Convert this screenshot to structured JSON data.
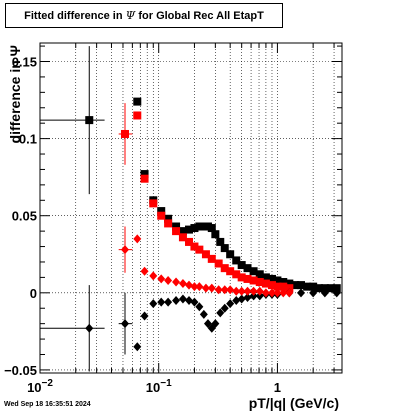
{
  "chart_data": {
    "type": "scatter",
    "title_prefix": "Fitted difference in",
    "title_symbol": "Ψ",
    "title_suffix": "for Global Rec All EtapT",
    "xlabel": "pT/|q| (GeV/c)",
    "ylabel": "difference in Ψ",
    "x_scale": "log",
    "xlim": [
      0.01,
      3.5
    ],
    "ylim": [
      -0.052,
      0.162
    ],
    "grid": true,
    "x_major_ticks": [
      {
        "v": 0.01,
        "base": "10",
        "exp": "−2"
      },
      {
        "v": 0.1,
        "base": "10",
        "exp": "−1"
      },
      {
        "v": 1,
        "base": "1",
        "exp": ""
      }
    ],
    "y_ticks": [
      {
        "v": -0.05,
        "label": "−0.05"
      },
      {
        "v": 0,
        "label": "0"
      },
      {
        "v": 0.05,
        "label": "0.05"
      },
      {
        "v": 0.1,
        "label": "0.1"
      },
      {
        "v": 0.15,
        "label": "0.15"
      }
    ],
    "series": [
      {
        "color": "#000000",
        "marker": "square",
        "points": [
          {
            "x": 0.026,
            "y": 0.112,
            "xerr": [
              0.01,
              0.035
            ],
            "yerr": 0.048
          },
          {
            "x": 0.066,
            "y": 0.124
          },
          {
            "x": 0.076,
            "y": 0.077
          },
          {
            "x": 0.09,
            "y": 0.06
          },
          {
            "x": 0.105,
            "y": 0.053
          },
          {
            "x": 0.12,
            "y": 0.048
          },
          {
            "x": 0.14,
            "y": 0.043
          },
          {
            "x": 0.16,
            "y": 0.04
          },
          {
            "x": 0.18,
            "y": 0.041
          },
          {
            "x": 0.2,
            "y": 0.042
          },
          {
            "x": 0.22,
            "y": 0.043
          },
          {
            "x": 0.24,
            "y": 0.043
          },
          {
            "x": 0.26,
            "y": 0.043
          },
          {
            "x": 0.28,
            "y": 0.042
          },
          {
            "x": 0.3,
            "y": 0.038
          },
          {
            "x": 0.33,
            "y": 0.033
          },
          {
            "x": 0.36,
            "y": 0.029
          },
          {
            "x": 0.4,
            "y": 0.025
          },
          {
            "x": 0.45,
            "y": 0.021
          },
          {
            "x": 0.5,
            "y": 0.018
          },
          {
            "x": 0.56,
            "y": 0.016
          },
          {
            "x": 0.63,
            "y": 0.014
          },
          {
            "x": 0.71,
            "y": 0.012
          },
          {
            "x": 0.8,
            "y": 0.01
          },
          {
            "x": 0.9,
            "y": 0.009
          },
          {
            "x": 1.0,
            "y": 0.008
          },
          {
            "x": 1.12,
            "y": 0.007
          },
          {
            "x": 1.26,
            "y": 0.006
          },
          {
            "x": 1.41,
            "y": 0.005
          },
          {
            "x": 1.58,
            "y": 0.005
          },
          {
            "x": 1.78,
            "y": 0.004
          },
          {
            "x": 2.0,
            "y": 0.004
          },
          {
            "x": 2.24,
            "y": 0.003
          },
          {
            "x": 2.51,
            "y": 0.003
          },
          {
            "x": 2.82,
            "y": 0.003
          },
          {
            "x": 3.16,
            "y": 0.003
          }
        ]
      },
      {
        "color": "#ff0000",
        "marker": "square",
        "points": [
          {
            "x": 0.052,
            "y": 0.103,
            "xerr": [
              0.046,
              0.06
            ],
            "yerr": 0.02
          },
          {
            "x": 0.066,
            "y": 0.115
          },
          {
            "x": 0.076,
            "y": 0.074
          },
          {
            "x": 0.09,
            "y": 0.058
          },
          {
            "x": 0.105,
            "y": 0.05
          },
          {
            "x": 0.12,
            "y": 0.045
          },
          {
            "x": 0.14,
            "y": 0.04
          },
          {
            "x": 0.16,
            "y": 0.036
          },
          {
            "x": 0.18,
            "y": 0.033
          },
          {
            "x": 0.2,
            "y": 0.03
          },
          {
            "x": 0.22,
            "y": 0.028
          },
          {
            "x": 0.25,
            "y": 0.025
          },
          {
            "x": 0.28,
            "y": 0.022
          },
          {
            "x": 0.32,
            "y": 0.019
          },
          {
            "x": 0.36,
            "y": 0.016
          },
          {
            "x": 0.4,
            "y": 0.014
          },
          {
            "x": 0.45,
            "y": 0.012
          },
          {
            "x": 0.5,
            "y": 0.01
          },
          {
            "x": 0.56,
            "y": 0.009
          },
          {
            "x": 0.63,
            "y": 0.008
          },
          {
            "x": 0.71,
            "y": 0.007
          },
          {
            "x": 0.8,
            "y": 0.006
          },
          {
            "x": 0.9,
            "y": 0.005
          },
          {
            "x": 1.0,
            "y": 0.004
          },
          {
            "x": 1.12,
            "y": 0.004
          },
          {
            "x": 1.26,
            "y": 0.003
          }
        ]
      },
      {
        "color": "#000000",
        "marker": "diamond",
        "points": [
          {
            "x": 0.026,
            "y": -0.023,
            "xerr": [
              0.01,
              0.035
            ],
            "yerr": 0.028
          },
          {
            "x": 0.052,
            "y": -0.02,
            "xerr": [
              0.046,
              0.06
            ],
            "yerr": 0.02
          },
          {
            "x": 0.066,
            "y": -0.035
          },
          {
            "x": 0.076,
            "y": -0.015
          },
          {
            "x": 0.09,
            "y": -0.007
          },
          {
            "x": 0.105,
            "y": -0.006
          },
          {
            "x": 0.12,
            "y": -0.006
          },
          {
            "x": 0.14,
            "y": -0.005
          },
          {
            "x": 0.16,
            "y": -0.004
          },
          {
            "x": 0.18,
            "y": -0.005
          },
          {
            "x": 0.2,
            "y": -0.006
          },
          {
            "x": 0.22,
            "y": -0.009
          },
          {
            "x": 0.24,
            "y": -0.014
          },
          {
            "x": 0.26,
            "y": -0.02
          },
          {
            "x": 0.28,
            "y": -0.023
          },
          {
            "x": 0.3,
            "y": -0.02
          },
          {
            "x": 0.33,
            "y": -0.013
          },
          {
            "x": 0.36,
            "y": -0.01
          },
          {
            "x": 0.4,
            "y": -0.007
          },
          {
            "x": 0.45,
            "y": -0.005
          },
          {
            "x": 0.5,
            "y": -0.004
          },
          {
            "x": 0.56,
            "y": -0.003
          },
          {
            "x": 0.63,
            "y": -0.002
          },
          {
            "x": 0.71,
            "y": -0.002
          },
          {
            "x": 0.8,
            "y": -0.001
          },
          {
            "x": 0.9,
            "y": -0.001
          },
          {
            "x": 1.0,
            "y": -0.001
          },
          {
            "x": 1.26,
            "y": 0.0
          },
          {
            "x": 1.58,
            "y": 0.0
          },
          {
            "x": 2.0,
            "y": 0.0
          },
          {
            "x": 2.51,
            "y": 0.0
          },
          {
            "x": 3.16,
            "y": 0.0
          }
        ]
      },
      {
        "color": "#ff0000",
        "marker": "diamond",
        "points": [
          {
            "x": 0.052,
            "y": 0.028,
            "xerr": [
              0.046,
              0.06
            ],
            "yerr": 0.015
          },
          {
            "x": 0.066,
            "y": 0.035
          },
          {
            "x": 0.076,
            "y": 0.014
          },
          {
            "x": 0.09,
            "y": 0.011
          },
          {
            "x": 0.105,
            "y": 0.009
          },
          {
            "x": 0.12,
            "y": 0.008
          },
          {
            "x": 0.14,
            "y": 0.007
          },
          {
            "x": 0.16,
            "y": 0.006
          },
          {
            "x": 0.18,
            "y": 0.005
          },
          {
            "x": 0.2,
            "y": 0.004
          },
          {
            "x": 0.22,
            "y": 0.004
          },
          {
            "x": 0.25,
            "y": 0.003
          },
          {
            "x": 0.28,
            "y": 0.003
          },
          {
            "x": 0.32,
            "y": 0.002
          },
          {
            "x": 0.36,
            "y": 0.002
          },
          {
            "x": 0.4,
            "y": 0.002
          },
          {
            "x": 0.45,
            "y": 0.001
          },
          {
            "x": 0.5,
            "y": 0.001
          },
          {
            "x": 0.56,
            "y": 0.001
          },
          {
            "x": 0.63,
            "y": 0.001
          },
          {
            "x": 0.71,
            "y": 0.001
          },
          {
            "x": 0.8,
            "y": 0.0
          },
          {
            "x": 0.9,
            "y": 0.0
          },
          {
            "x": 1.0,
            "y": 0.0
          },
          {
            "x": 1.12,
            "y": 0.0
          },
          {
            "x": 1.26,
            "y": 0.0
          }
        ]
      }
    ]
  },
  "footer": {
    "timestamp": "Wed Sep 18 16:35:51 2024"
  }
}
